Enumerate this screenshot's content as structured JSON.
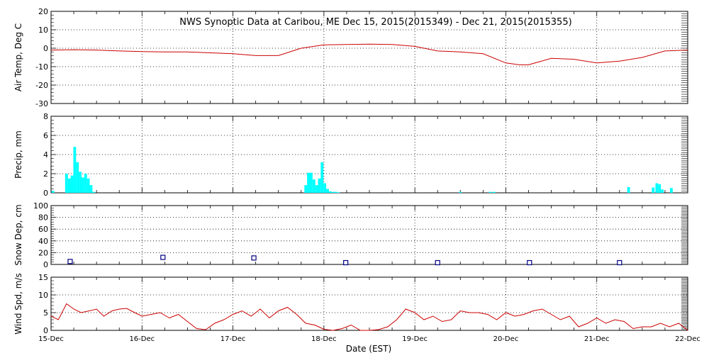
{
  "chart_data": [
    {
      "type": "line",
      "title": "NWS Synoptic Data at Caribou, ME   Dec 15, 2015(2015349) - Dec 21, 2015(2015355)",
      "ylabel": "Air Temp, Deg C",
      "ylim": [
        -30,
        20
      ],
      "yticks": [
        20,
        10,
        0,
        -10,
        -20,
        -30
      ],
      "color": "#cc0000",
      "x": [
        0,
        0.25,
        0.5,
        0.75,
        1.0,
        1.25,
        1.5,
        1.75,
        2.0,
        2.25,
        2.5,
        2.75,
        3.0,
        3.25,
        3.5,
        3.75,
        4.0,
        4.25,
        4.5,
        4.75,
        5.0,
        5.15,
        5.25,
        5.5,
        5.75,
        6.0,
        6.25,
        6.5,
        6.75,
        7.0
      ],
      "y": [
        -1,
        -0.8,
        -1,
        -1.5,
        -1.8,
        -2,
        -2,
        -2.5,
        -3,
        -4,
        -4,
        0,
        1.8,
        2,
        2.2,
        2,
        1,
        -1.5,
        -2,
        -3,
        -8,
        -9,
        -9,
        -5.5,
        -6,
        -8,
        -7,
        -5,
        -1.5,
        -1
      ]
    },
    {
      "type": "bar",
      "ylabel": "Precip, mm",
      "ylim": [
        0,
        8
      ],
      "yticks": [
        8,
        6,
        4,
        2,
        0
      ],
      "color": "#00ffff",
      "x": [
        0.02,
        0.17,
        0.2,
        0.23,
        0.26,
        0.29,
        0.32,
        0.35,
        0.38,
        0.41,
        0.44,
        0.47,
        2.8,
        2.83,
        2.86,
        2.89,
        2.92,
        2.95,
        2.98,
        3.01,
        3.04,
        3.07,
        3.1,
        3.13,
        3.16,
        4.5,
        4.83,
        4.87,
        6.35,
        6.62,
        6.66,
        6.69,
        6.72,
        6.82
      ],
      "y": [
        0.2,
        2.0,
        1.5,
        1.8,
        4.8,
        3.2,
        2.2,
        1.6,
        2.0,
        1.5,
        0.8,
        0.1,
        0.8,
        2.1,
        2.1,
        1.4,
        0.8,
        1.5,
        3.2,
        1.0,
        0.4,
        0.15,
        0.1,
        0.1,
        0.05,
        0.1,
        0.1,
        0.1,
        0.6,
        0.55,
        1.0,
        0.9,
        0.35,
        0.5
      ]
    },
    {
      "type": "scatter",
      "ylabel": "Snow Dep, cm",
      "ylim": [
        0,
        100
      ],
      "yticks": [
        100,
        80,
        60,
        40,
        20,
        0
      ],
      "color": "#000080",
      "x": [
        0.21,
        1.23,
        2.23,
        3.24,
        4.25,
        5.26,
        6.25
      ],
      "y": [
        5,
        12,
        11,
        3,
        3,
        3,
        3
      ]
    },
    {
      "type": "line",
      "ylabel": "Wind Spd, m/s",
      "xlabel": "Date (EST)",
      "ylim": [
        0,
        15
      ],
      "yticks": [
        15,
        10,
        5,
        0
      ],
      "color": "#cc0000",
      "x": [
        0,
        0.08,
        0.17,
        0.25,
        0.33,
        0.42,
        0.5,
        0.58,
        0.67,
        0.75,
        0.83,
        0.92,
        1.0,
        1.1,
        1.2,
        1.3,
        1.4,
        1.5,
        1.6,
        1.7,
        1.8,
        1.9,
        2.0,
        2.1,
        2.2,
        2.3,
        2.4,
        2.5,
        2.6,
        2.7,
        2.8,
        2.9,
        3.0,
        3.1,
        3.2,
        3.3,
        3.4,
        3.5,
        3.6,
        3.7,
        3.8,
        3.9,
        4.0,
        4.1,
        4.2,
        4.3,
        4.4,
        4.5,
        4.6,
        4.7,
        4.8,
        4.9,
        5.0,
        5.1,
        5.2,
        5.3,
        5.4,
        5.5,
        5.6,
        5.7,
        5.8,
        5.9,
        6.0,
        6.1,
        6.2,
        6.3,
        6.4,
        6.5,
        6.6,
        6.7,
        6.8,
        6.9,
        7.0
      ],
      "y": [
        4,
        3,
        7.5,
        6,
        5,
        5.5,
        6,
        4,
        5.5,
        6,
        6.2,
        5,
        4,
        4.5,
        5,
        3.5,
        4.5,
        2.5,
        0.5,
        0.2,
        2,
        3,
        4.5,
        5.5,
        4,
        6,
        3.5,
        5.5,
        6.5,
        4.5,
        2,
        1.5,
        0.3,
        0,
        0.5,
        1.5,
        0,
        -1,
        0.2,
        1,
        3,
        6,
        5,
        3,
        4,
        2.5,
        3,
        5.5,
        5,
        5,
        4.5,
        3,
        5,
        4,
        4.5,
        5.5,
        6,
        4.5,
        3,
        4,
        1,
        2,
        3.5,
        2,
        3,
        2.5,
        0.5,
        1,
        1,
        2,
        1,
        2,
        0
      ]
    }
  ],
  "x_axis": {
    "range": [
      0,
      7
    ],
    "tick_labels": [
      "15-Dec",
      "16-Dec",
      "17-Dec",
      "18-Dec",
      "19-Dec",
      "20-Dec",
      "21-Dec",
      "22-Dec"
    ],
    "label": "Date (EST)"
  },
  "grid": true
}
